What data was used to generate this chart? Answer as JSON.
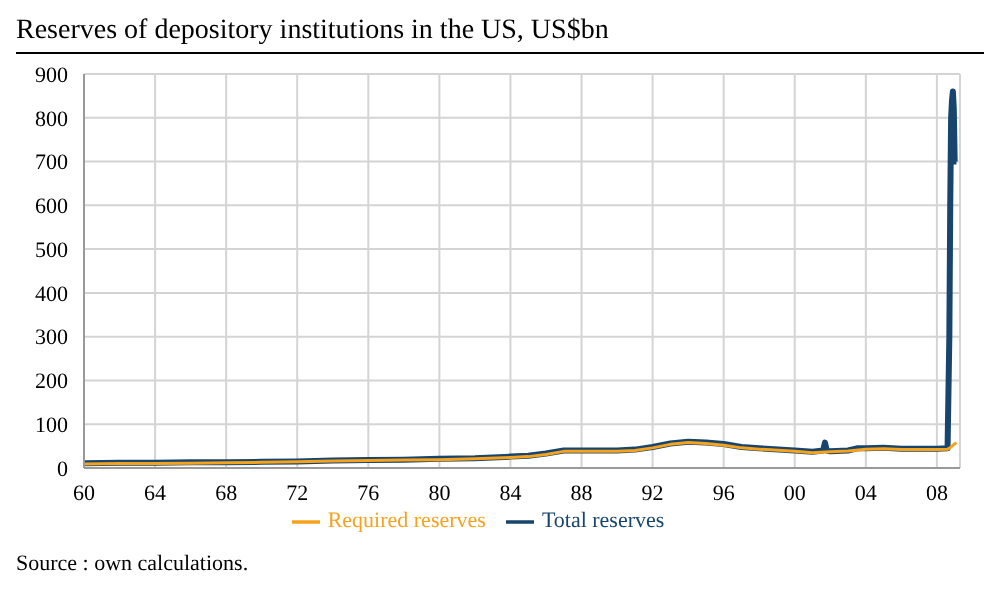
{
  "chart_data": {
    "type": "line",
    "title": "Reserves of depository institutions in the US, US$bn",
    "annotations": [
      "Source : own calculations."
    ],
    "series": [
      {
        "name": "Total reserves",
        "color": "#17456e",
        "x": [
          1960,
          1962,
          1964,
          1966,
          1968,
          1970,
          1972,
          1974,
          1976,
          1978,
          1980,
          1982,
          1984,
          1985,
          1986,
          1987,
          1988,
          1990,
          1991,
          1992,
          1993,
          1994,
          1995,
          1996,
          1997,
          1998,
          2000,
          2001,
          2001.6,
          2001.7,
          2001.8,
          2002,
          2003,
          2003.5,
          2004,
          2005,
          2006,
          2007,
          2008,
          2008.6,
          2008.7,
          2008.75,
          2008.8,
          2008.85,
          2008.9,
          2008.95,
          2009,
          2009.1
        ],
        "values": [
          11,
          12,
          12,
          13,
          13,
          14,
          15,
          17,
          18,
          19,
          21,
          22,
          26,
          28,
          33,
          40,
          40,
          40,
          42,
          48,
          56,
          60,
          58,
          55,
          48,
          45,
          40,
          37,
          40,
          58,
          40,
          38,
          40,
          45,
          45,
          46,
          44,
          44,
          44,
          45,
          300,
          600,
          800,
          840,
          860,
          820,
          700,
          700
        ]
      },
      {
        "name": "Required reserves",
        "color": "#f7a21b",
        "x": [
          1960,
          1962,
          1964,
          1966,
          1968,
          1970,
          1972,
          1974,
          1976,
          1978,
          1980,
          1982,
          1984,
          1985,
          1986,
          1987,
          1988,
          1990,
          1991,
          1992,
          1993,
          1994,
          1995,
          1996,
          1997,
          1998,
          2000,
          2001,
          2002,
          2003,
          2004,
          2005,
          2006,
          2007,
          2008,
          2008.6,
          2008.8,
          2009,
          2009.1
        ],
        "values": [
          9,
          10,
          10,
          11,
          12,
          13,
          14,
          16,
          17,
          18,
          19,
          21,
          24,
          26,
          31,
          38,
          38,
          38,
          40,
          46,
          54,
          58,
          56,
          52,
          46,
          43,
          38,
          35,
          37,
          39,
          43,
          44,
          42,
          42,
          42,
          43,
          48,
          55,
          58
        ]
      }
    ],
    "xlim": [
      1960,
      2009.3
    ],
    "xticks": [
      {
        "value": 1960,
        "label": "60"
      },
      {
        "value": 1964,
        "label": "64"
      },
      {
        "value": 1968,
        "label": "68"
      },
      {
        "value": 1972,
        "label": "72"
      },
      {
        "value": 1976,
        "label": "76"
      },
      {
        "value": 1980,
        "label": "80"
      },
      {
        "value": 1984,
        "label": "84"
      },
      {
        "value": 1988,
        "label": "88"
      },
      {
        "value": 1992,
        "label": "92"
      },
      {
        "value": 1996,
        "label": "96"
      },
      {
        "value": 2000,
        "label": "00"
      },
      {
        "value": 2004,
        "label": "04"
      },
      {
        "value": 2008,
        "label": "08"
      }
    ],
    "ylim": [
      0,
      900
    ],
    "yticks": [
      0,
      100,
      200,
      300,
      400,
      500,
      600,
      700,
      800,
      900
    ],
    "grid": true,
    "legend": "bottom",
    "marker": "none",
    "line_style": "solid"
  }
}
